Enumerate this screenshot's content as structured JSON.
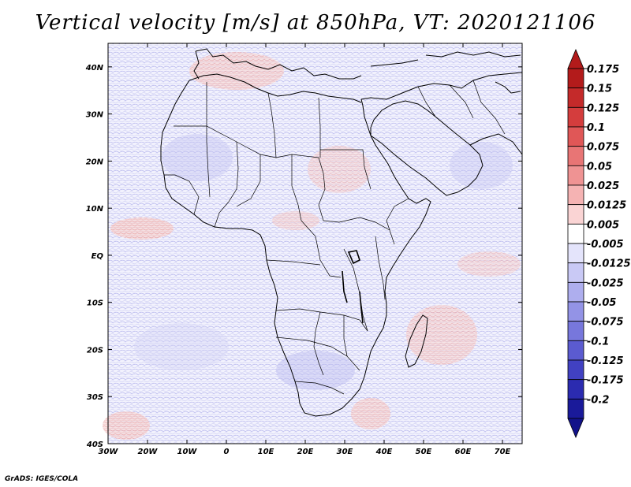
{
  "map": {
    "title": "Vertical velocity [m/s] at 850hPa, VT: 2020121106",
    "lat_labels": [
      "40N",
      "30N",
      "20N",
      "10N",
      "EQ",
      "10S",
      "20S",
      "30S",
      "40S"
    ],
    "lat_values": [
      40,
      30,
      20,
      10,
      0,
      -10,
      -20,
      -30,
      -40
    ],
    "lon_labels": [
      "30W",
      "20W",
      "10W",
      "0",
      "10E",
      "20E",
      "30E",
      "40E",
      "50E",
      "60E",
      "70E"
    ],
    "lon_values": [
      -30,
      -20,
      -10,
      0,
      10,
      20,
      30,
      40,
      50,
      60,
      70
    ],
    "lat_range": [
      -40,
      45
    ],
    "lon_range": [
      -30,
      75
    ],
    "colorbar": {
      "labels": [
        "0.175",
        "0.15",
        "0.125",
        "0.1",
        "0.075",
        "0.05",
        "0.025",
        "0.0125",
        "0.005",
        "-0.005",
        "-0.0125",
        "-0.025",
        "-0.05",
        "-0.075",
        "-0.1",
        "-0.125",
        "-0.175",
        "-0.2"
      ],
      "colors": [
        "#b31b1b",
        "#c42a2a",
        "#d43d3d",
        "#e05757",
        "#e87575",
        "#ef9393",
        "#f5b3b3",
        "#fad4d4",
        "#ffffff",
        "#e4e4fb",
        "#c9c9f5",
        "#aeaeee",
        "#9393e6",
        "#7777dc",
        "#5b5bd0",
        "#4141c2",
        "#2b2bb0",
        "#1a1a9a"
      ],
      "top_arrow_color": "#b31b1b",
      "bottom_arrow_color": "#12128a"
    },
    "credit": "GrADS: IGES/COLA"
  }
}
